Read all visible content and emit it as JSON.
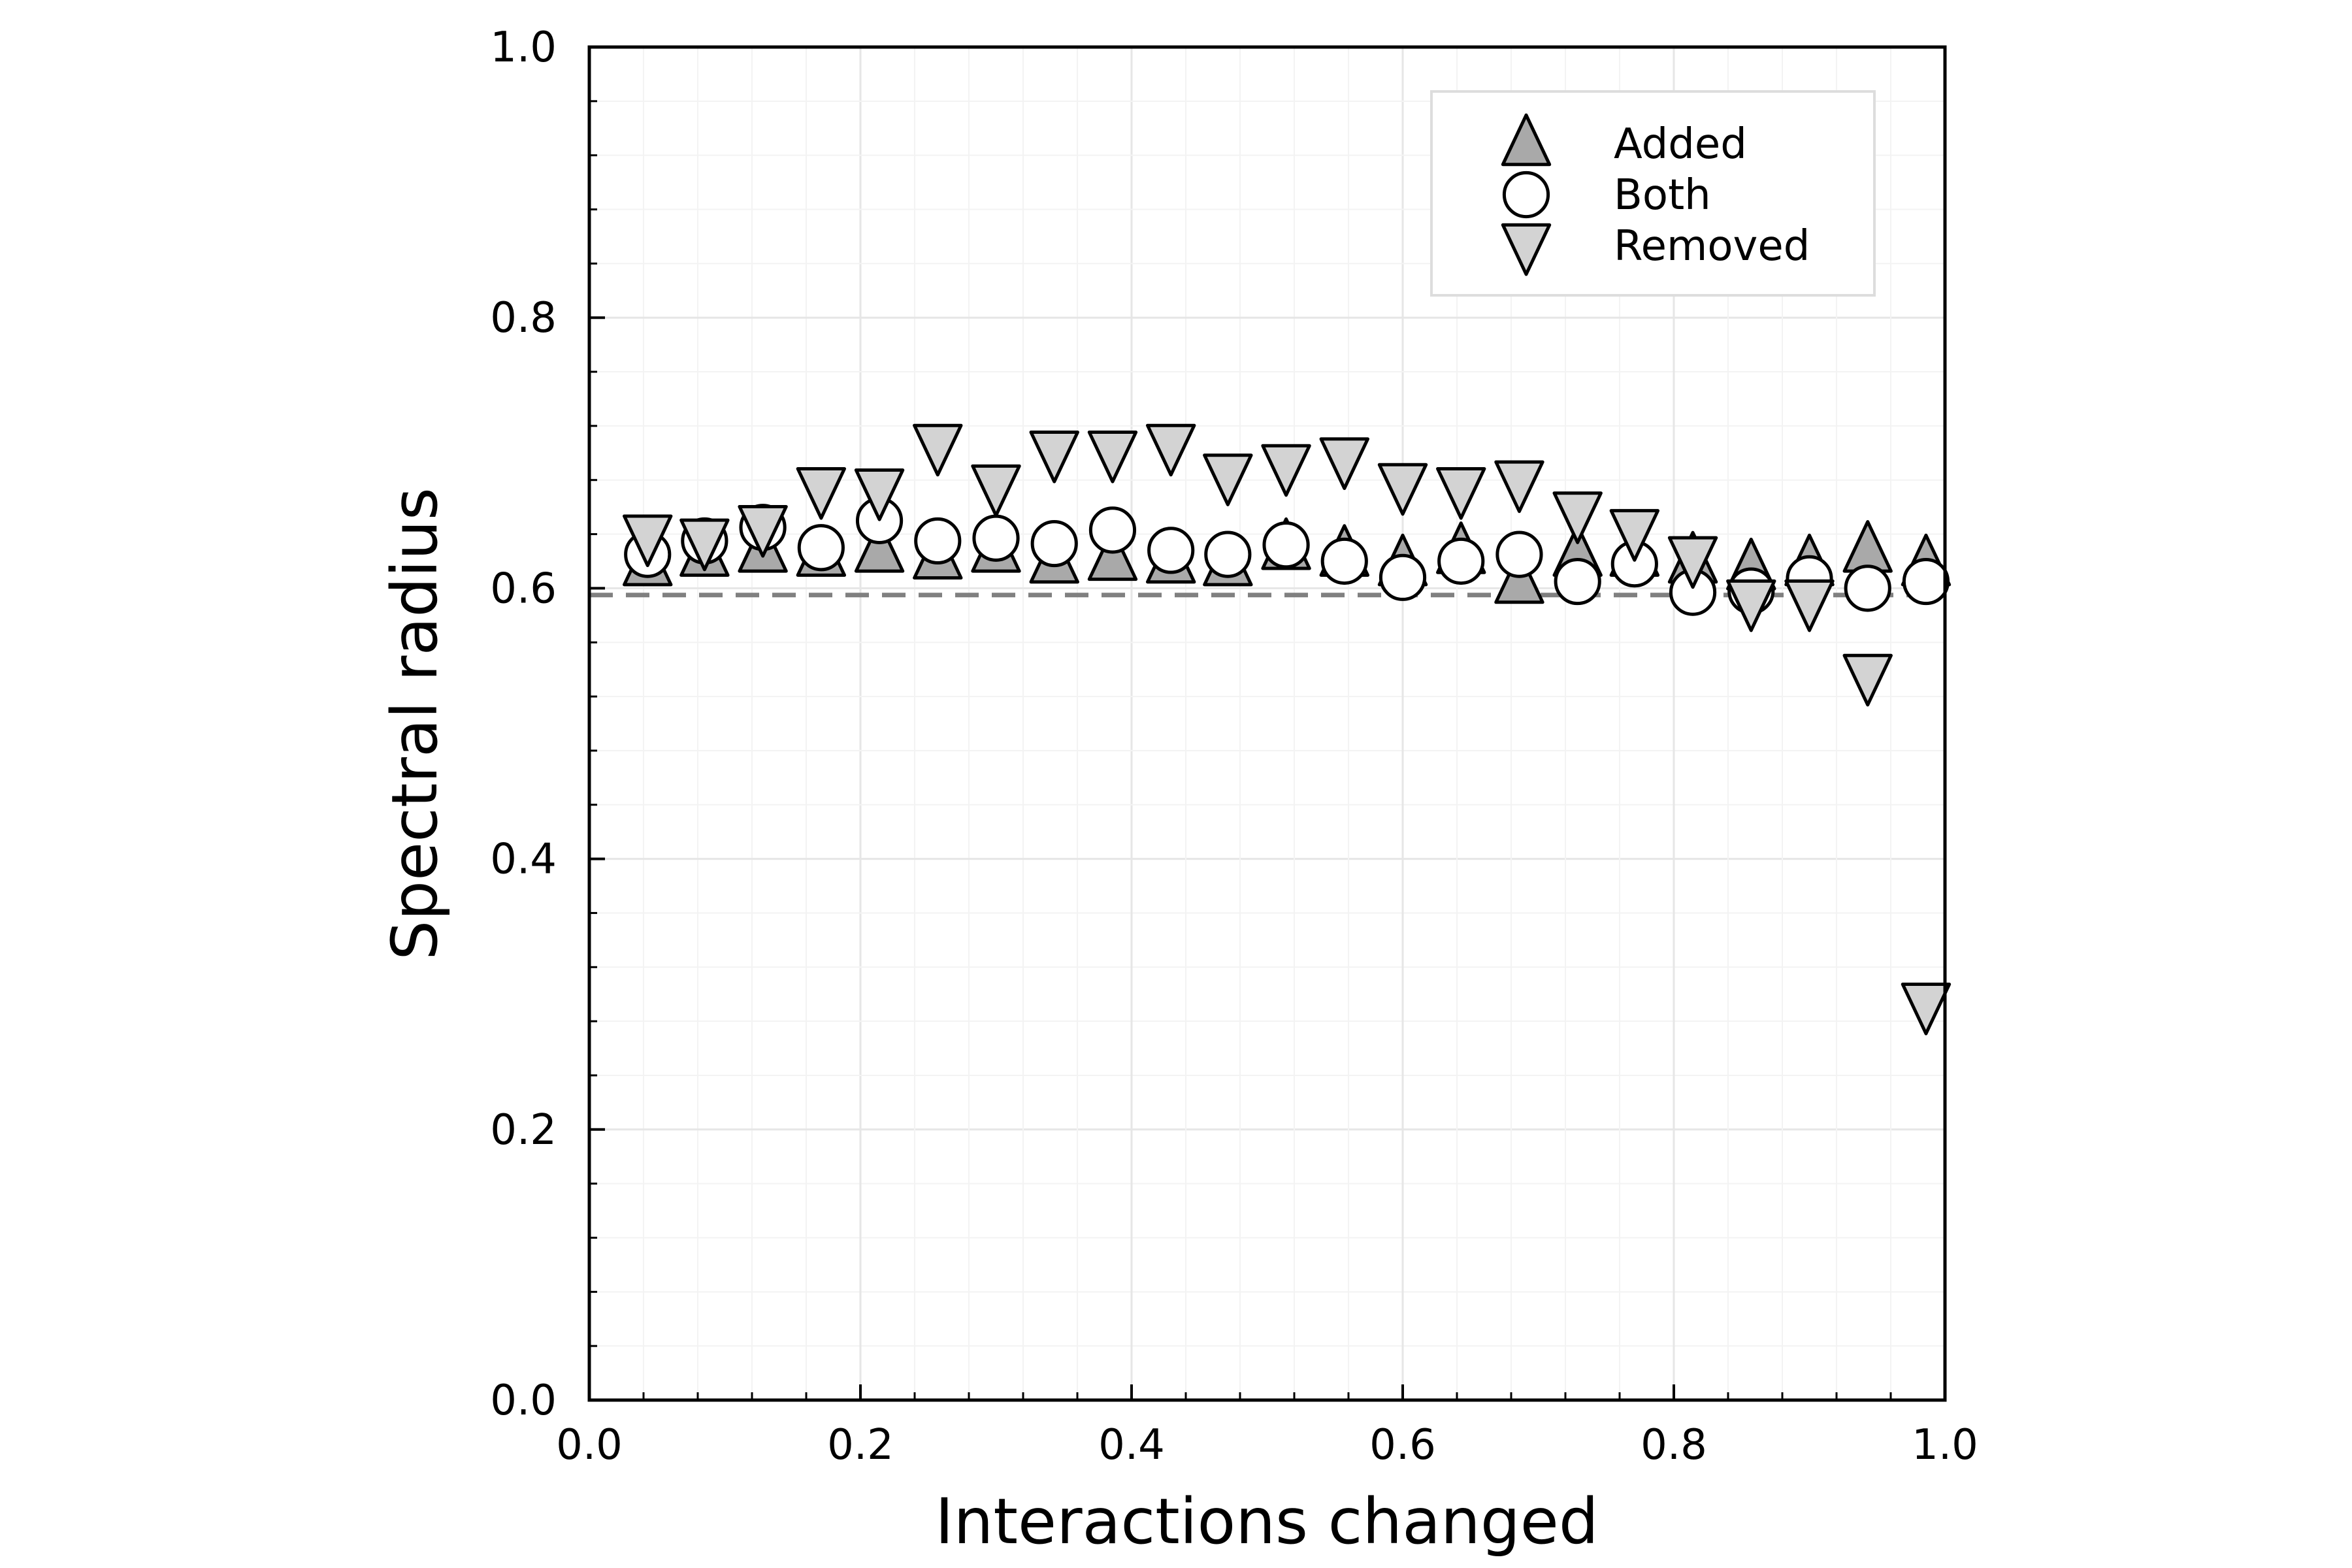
{
  "chart_data": {
    "type": "scatter",
    "title": "",
    "xlabel": "Interactions changed",
    "ylabel": "Spectral radius",
    "xlim": [
      0.0,
      1.0
    ],
    "ylim": [
      0.0,
      1.0
    ],
    "xticks": [
      "0.0",
      "0.2",
      "0.4",
      "0.6",
      "0.8",
      "1.0"
    ],
    "yticks": [
      "0.0",
      "0.2",
      "0.4",
      "0.6",
      "0.8",
      "1.0"
    ],
    "grid": true,
    "legend_position": "top-right",
    "reference_line": {
      "y": 0.595,
      "style": "dashed",
      "color": "#808080"
    },
    "x": [
      0.043,
      0.085,
      0.128,
      0.171,
      0.214,
      0.257,
      0.3,
      0.343,
      0.386,
      0.429,
      0.471,
      0.514,
      0.557,
      0.6,
      0.643,
      0.686,
      0.729,
      0.771,
      0.814,
      0.857,
      0.9,
      0.943,
      0.986
    ],
    "series": [
      {
        "name": "Added",
        "marker": "triangle-up",
        "color": "#a9a9a9",
        "values": [
          0.618,
          0.625,
          0.628,
          0.625,
          0.628,
          0.623,
          0.628,
          0.62,
          0.622,
          0.62,
          0.618,
          0.63,
          0.625,
          0.618,
          0.627,
          0.605,
          0.625,
          0.625,
          0.62,
          0.615,
          0.618,
          0.628,
          0.618
        ]
      },
      {
        "name": "Both",
        "marker": "circle",
        "color": "#ffffff",
        "values": [
          0.625,
          0.635,
          0.645,
          0.63,
          0.65,
          0.635,
          0.637,
          0.633,
          0.643,
          0.628,
          0.625,
          0.632,
          0.62,
          0.608,
          0.62,
          0.625,
          0.605,
          0.618,
          0.597,
          0.598,
          0.607,
          0.6,
          0.605
        ]
      },
      {
        "name": "Removed",
        "marker": "triangle-down",
        "color": "#d3d3d3",
        "values": [
          0.638,
          0.635,
          0.645,
          0.673,
          0.672,
          0.705,
          0.675,
          0.7,
          0.7,
          0.705,
          0.683,
          0.69,
          0.695,
          0.676,
          0.673,
          0.678,
          0.655,
          0.642,
          0.622,
          0.59,
          0.59,
          0.535,
          0.292
        ]
      }
    ]
  }
}
